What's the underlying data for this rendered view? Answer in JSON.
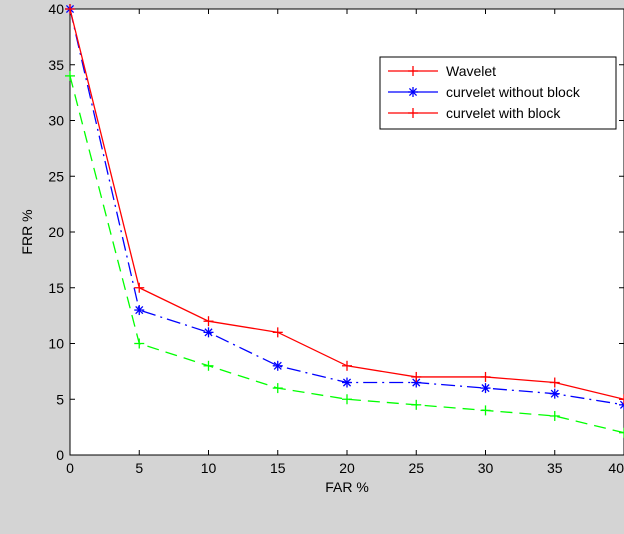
{
  "chart_data": {
    "type": "line",
    "title": "",
    "xlabel": "FAR %",
    "ylabel": "FRR %",
    "x": [
      0,
      5,
      10,
      15,
      20,
      25,
      30,
      35,
      40
    ],
    "xlim": [
      0,
      40
    ],
    "ylim": [
      0,
      40
    ],
    "xticks": [
      0,
      5,
      10,
      15,
      20,
      25,
      30,
      35,
      40
    ],
    "yticks": [
      0,
      5,
      10,
      15,
      20,
      25,
      30,
      35,
      40
    ],
    "grid": false,
    "legend_position": "top-right",
    "series": [
      {
        "name": "Wavelet",
        "color": "#ff0000",
        "line_style": "solid",
        "marker": "plus",
        "legend_marker": "plus",
        "values": [
          40,
          15,
          12,
          11,
          8,
          7,
          7,
          6.5,
          5
        ]
      },
      {
        "name": "curvelet without block",
        "color": "#0000ff",
        "line_style": "dashdot",
        "marker": "asterisk",
        "legend_marker": "asterisk",
        "values": [
          40,
          13,
          11,
          8,
          6.5,
          6.5,
          6,
          5.5,
          4.5
        ]
      },
      {
        "name": "curvelet with block",
        "color": "#00ff00",
        "line_style": "dashed",
        "marker": "plus",
        "legend_color": "#ff0000",
        "legend_marker": "plus",
        "values": [
          34,
          10,
          8,
          6,
          5,
          4.5,
          4,
          3.5,
          2
        ]
      }
    ]
  }
}
